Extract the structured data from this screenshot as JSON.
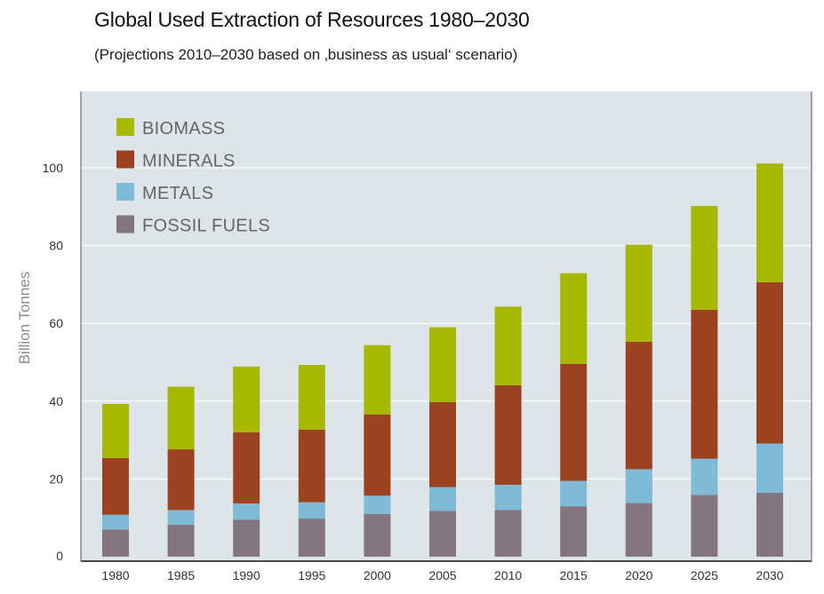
{
  "chart_data": {
    "type": "bar",
    "stacked": true,
    "title": "Global Used Extraction of Resources 1980–2030",
    "subtitle": "(Projections 2010–2030 based on ‚business as usual‘ scenario)",
    "xlabel": "",
    "ylabel": "Billion Tonnes",
    "ylim": [
      0,
      120
    ],
    "yticks": [
      0,
      20,
      40,
      60,
      80,
      100
    ],
    "grid": true,
    "legend_position": "top-left",
    "categories": [
      "1980",
      "1985",
      "1990",
      "1995",
      "2000",
      "2005",
      "2010",
      "2015",
      "2020",
      "2025",
      "2030"
    ],
    "series": [
      {
        "name": "FOSSIL FUELS",
        "color": "#84767f",
        "values": [
          7,
          8.2,
          9.5,
          9.8,
          11,
          11.8,
          12,
          12.9,
          13.8,
          15.9,
          16.5
        ]
      },
      {
        "name": "METALS",
        "color": "#7fbad6",
        "values": [
          3.8,
          3.8,
          4.2,
          4.2,
          4.7,
          6.1,
          6.5,
          6.6,
          8.7,
          9.3,
          12.6
        ]
      },
      {
        "name": "MINERALS",
        "color": "#9b4320",
        "values": [
          14.6,
          15.6,
          18.3,
          18.7,
          20.9,
          21.9,
          25.6,
          30.1,
          32.8,
          38.3,
          41.5
        ]
      },
      {
        "name": "BIOMASS",
        "color": "#a6b800",
        "values": [
          13.9,
          16.1,
          16.9,
          16.6,
          17.8,
          19.2,
          20.2,
          23.3,
          24.9,
          26.7,
          30.5
        ]
      }
    ],
    "legend_order": [
      "BIOMASS",
      "MINERALS",
      "METALS",
      "FOSSIL FUELS"
    ],
    "plot_background": "#dee5e9"
  }
}
